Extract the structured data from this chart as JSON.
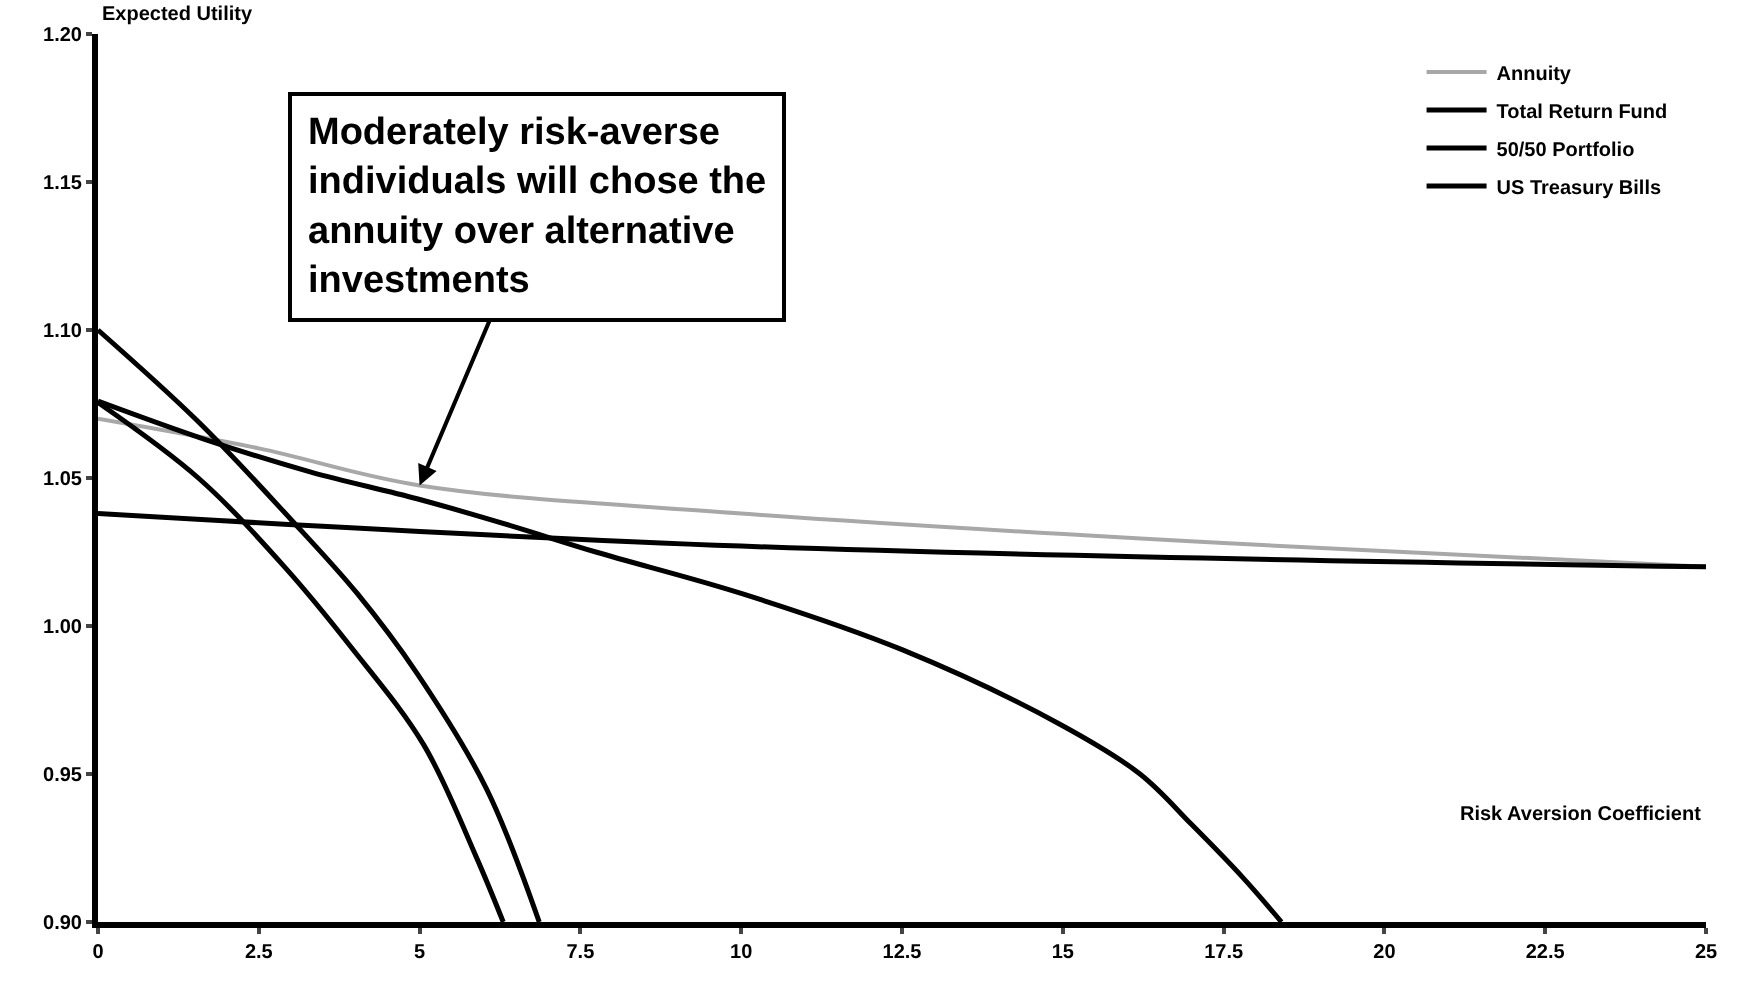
{
  "chart_data": {
    "type": "line",
    "xlabel": "Risk Aversion Coefficient",
    "ylabel": "Expected Utility",
    "xlim": [
      0,
      25
    ],
    "xticks": [
      0,
      2.5,
      5,
      7.5,
      10,
      12.5,
      15,
      17.5,
      20,
      22.5,
      25
    ],
    "ylim": [
      0.9,
      1.2
    ],
    "yticks": [
      {
        "value": 0.9,
        "label": "0.90"
      },
      {
        "value": 0.95,
        "label": "0.95"
      },
      {
        "value": 1.0,
        "label": "1.00"
      },
      {
        "value": 1.05,
        "label": "1.05"
      },
      {
        "value": 1.1,
        "label": "1.10"
      },
      {
        "value": 1.15,
        "label": "1.15"
      },
      {
        "value": 1.2,
        "label": "1.20"
      }
    ],
    "legend": "top right",
    "marker": "none",
    "line_style": "solid",
    "annotations": [
      {
        "text": "Moderately risk-averse individuals will chose the annuity over alternative investments",
        "x": 5,
        "y": 1.0475
      }
    ],
    "series": [
      {
        "name": "Annuity",
        "color": "#a8a8a8",
        "x": [
          0,
          2.5,
          5,
          10,
          17.5,
          25
        ],
        "values": [
          1.07,
          1.06,
          1.0475,
          1.038,
          1.028,
          1.02
        ]
      },
      {
        "color": "#000000",
        "x": [
          0,
          1.56,
          3.0,
          4.03,
          4.96,
          6.04,
          6.86
        ],
        "values": [
          1.1,
          1.069,
          1.036,
          1.011,
          0.984,
          0.945,
          0.9
        ]
      },
      {
        "name": "Total Return Fund",
        "color": "#000000",
        "x": [
          0,
          1.56,
          2.9,
          3.93,
          5.06,
          5.88,
          6.3
        ],
        "values": [
          1.0755,
          1.05,
          1.02,
          0.993,
          0.96,
          0.922,
          0.9
        ]
      },
      {
        "name": "50/50 Portfolio",
        "color": "#000000",
        "x": [
          0,
          1.67,
          3.31,
          4.96,
          6.4,
          7.74,
          10,
          12.5,
          14.94,
          16.2,
          17.0,
          17.8,
          18.4
        ],
        "values": [
          1.076,
          1.063,
          1.052,
          1.043,
          1.034,
          1.025,
          1.011,
          0.992,
          0.967,
          0.95,
          0.933,
          0.915,
          0.9
        ]
      },
      {
        "name": "US Treasury Bills",
        "color": "#000000",
        "x": [
          0,
          10,
          25
        ],
        "values": [
          1.038,
          1.027,
          1.02
        ]
      }
    ]
  }
}
